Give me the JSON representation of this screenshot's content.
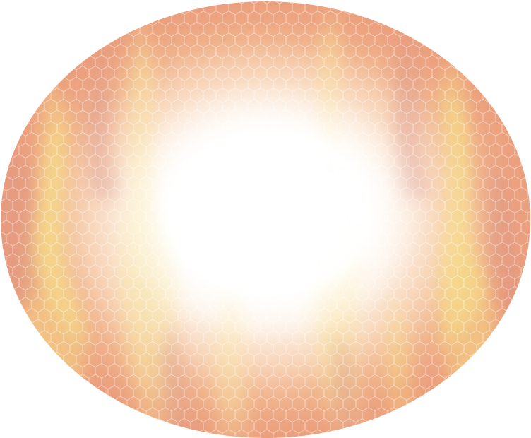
{
  "artwork": {
    "shape": "ellipse",
    "description_tag": "glowing-ellipse-with-honeycomb-pattern",
    "colors": {
      "center": "#ffffff",
      "mid_glow": "#fbe3cf",
      "warm_orange": "#eea37c",
      "soft_yellow": "#f6e08a",
      "shadow_rose": "#d9968e",
      "hex_line": "#ffffff"
    },
    "pattern": "honeycomb",
    "texture": "flame-streaks"
  }
}
